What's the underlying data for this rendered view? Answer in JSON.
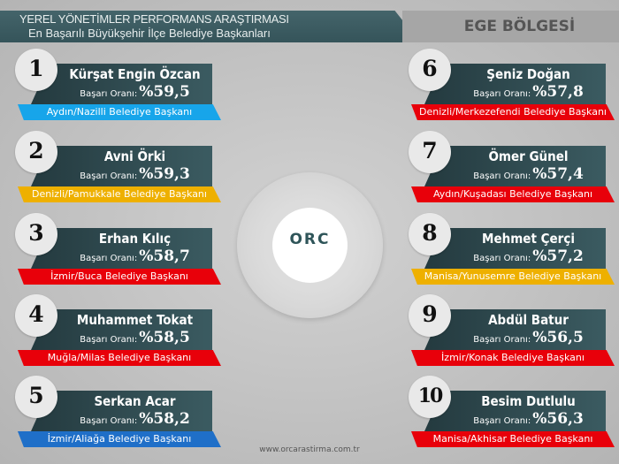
{
  "header": {
    "title": "YEREL YÖNETİMLER PERFORMANS ARAŞTIRMASI",
    "subtitle": "En Başarılı  Büyükşehir İlçe Belediye Başkanları",
    "region": "EGE BÖLGESİ"
  },
  "rate_label": "Başarı Oranı:",
  "logo": {
    "text": "ORC"
  },
  "footer": "www.orcarastirma.com.tr",
  "left": [
    {
      "rank": "1",
      "name": "Kürşat Engin Özcan",
      "rate": "%59,5",
      "title": "Aydın/Nazilli Belediye Başkanı",
      "color": "#17a5ea"
    },
    {
      "rank": "2",
      "name": "Avni Örki",
      "rate": "%59,3",
      "title": "Denizli/Pamukkale Belediye Başkanı",
      "color": "#eeb000"
    },
    {
      "rank": "3",
      "name": "Erhan Kılıç",
      "rate": "%58,7",
      "title": "İzmir/Buca Belediye Başkanı",
      "color": "#e8000a"
    },
    {
      "rank": "4",
      "name": "Muhammet Tokat",
      "rate": "%58,5",
      "title": "Muğla/Milas Belediye Başkanı",
      "color": "#e8000a"
    },
    {
      "rank": "5",
      "name": "Serkan Acar",
      "rate": "%58,2",
      "title": "İzmir/Aliağa Belediye Başkanı",
      "color": "#1f6fc8"
    }
  ],
  "right": [
    {
      "rank": "6",
      "name": "Şeniz Doğan",
      "rate": "%57,8",
      "title": "Denizli/Merkezefendi Belediye Başkanı",
      "color": "#e8000a"
    },
    {
      "rank": "7",
      "name": "Ömer Günel",
      "rate": "%57,4",
      "title": "Aydın/Kuşadası Belediye Başkanı",
      "color": "#e8000a"
    },
    {
      "rank": "8",
      "name": "Mehmet Çerçi",
      "rate": "%57,2",
      "title": "Manisa/Yunusemre Belediye Başkanı",
      "color": "#eeb000"
    },
    {
      "rank": "9",
      "name": "Abdül Batur",
      "rate": "%56,5",
      "title": "İzmir/Konak Belediye Başkanı",
      "color": "#e8000a"
    },
    {
      "rank": "10",
      "name": "Besim Dutlulu",
      "rate": "%56,3",
      "title": "Manisa/Akhisar Belediye Başkanı",
      "color": "#e8000a"
    }
  ]
}
